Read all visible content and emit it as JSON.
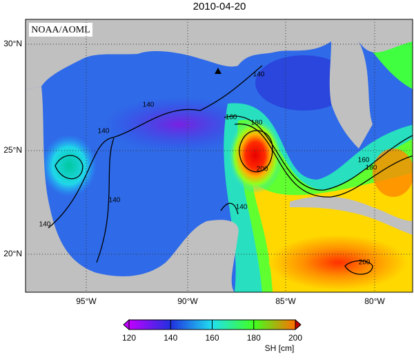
{
  "title": "2010-04-20",
  "credit": "NOAA/AOML",
  "lat_labels": [
    "30°N",
    "25°N",
    "20°N"
  ],
  "lon_labels": [
    "95°W",
    "90°W",
    "85°W",
    "80°W"
  ],
  "contour_labels": [
    140,
    140,
    140,
    140,
    160,
    180,
    200,
    160,
    180,
    140,
    140,
    200
  ],
  "colorbar": {
    "label": "SH [cm]",
    "ticks": [
      120,
      140,
      160,
      180,
      200
    ]
  }
}
